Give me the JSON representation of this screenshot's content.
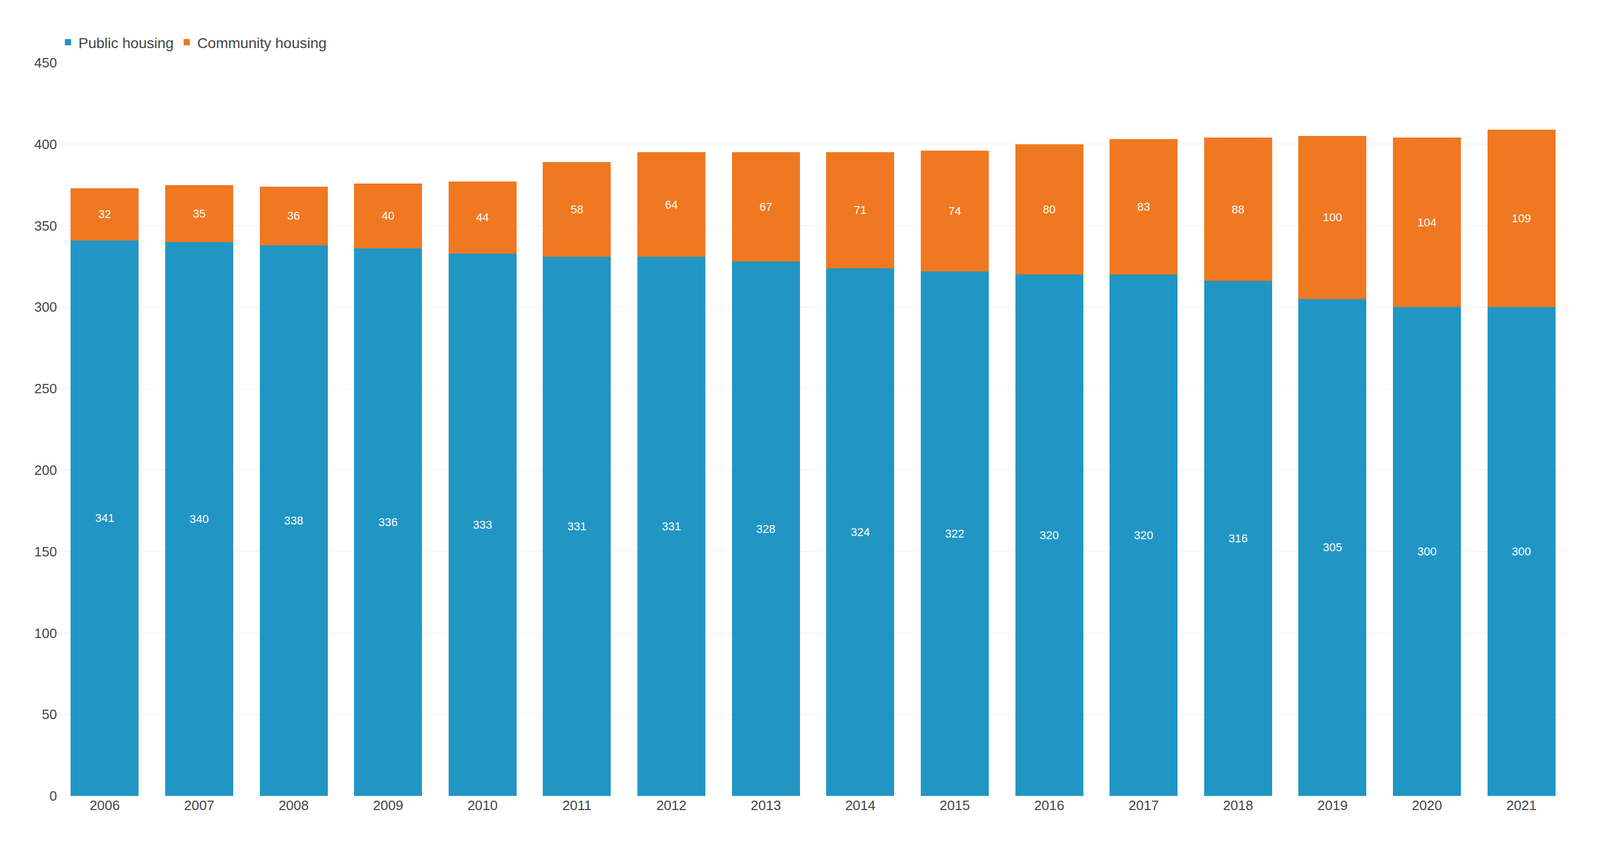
{
  "chart_data": {
    "type": "bar",
    "stacked": true,
    "categories": [
      "2006",
      "2007",
      "2008",
      "2009",
      "2010",
      "2011",
      "2012",
      "2013",
      "2014",
      "2015",
      "2016",
      "2017",
      "2018",
      "2019",
      "2020",
      "2021"
    ],
    "series": [
      {
        "name": "Public housing",
        "color": "#2196c4",
        "values": [
          341,
          340,
          338,
          336,
          333,
          331,
          331,
          328,
          324,
          322,
          320,
          320,
          316,
          305,
          300,
          300
        ]
      },
      {
        "name": "Community housing",
        "color": "#f07820",
        "values": [
          32,
          35,
          36,
          40,
          44,
          58,
          64,
          67,
          71,
          74,
          80,
          83,
          88,
          100,
          104,
          109
        ]
      }
    ],
    "ylim": [
      0,
      450
    ],
    "yticks": [
      0,
      50,
      100,
      150,
      200,
      250,
      300,
      350,
      400,
      450
    ],
    "grid": true,
    "legend": "upper left",
    "data_labels": true
  }
}
